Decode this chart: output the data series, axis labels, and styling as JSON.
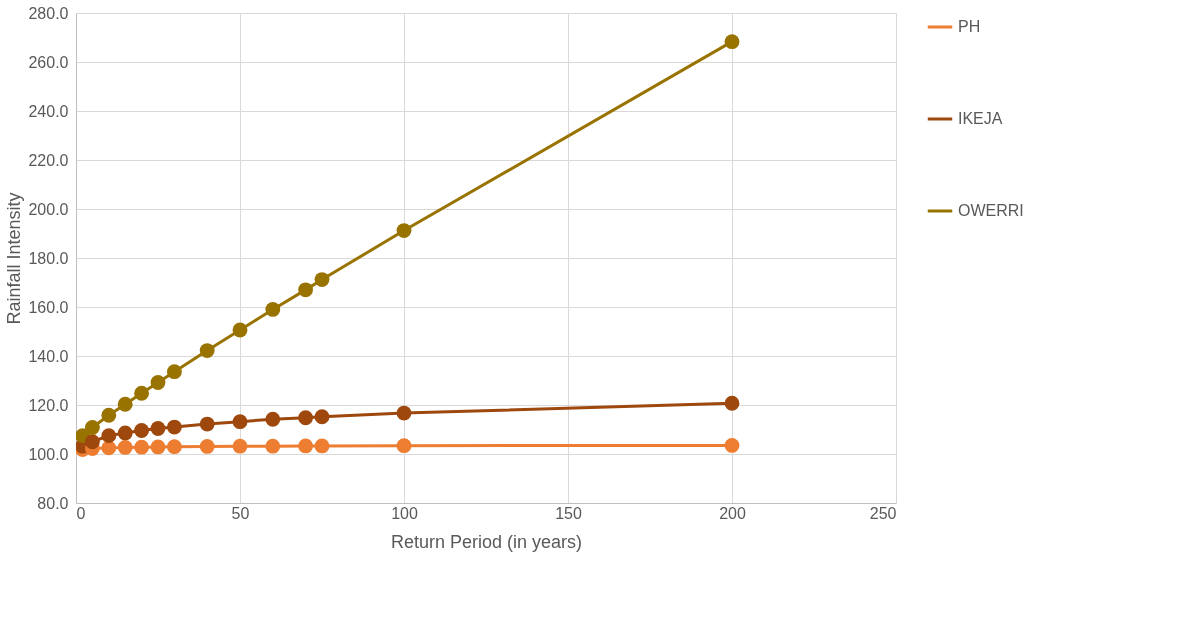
{
  "chart_data": {
    "type": "line",
    "xlabel": "Return Period (in years)",
    "ylabel": "Rainfall Intensity",
    "x": [
      2,
      5,
      10,
      15,
      20,
      25,
      30,
      40,
      50,
      60,
      70,
      75,
      100,
      200
    ],
    "series": [
      {
        "name": "PH",
        "color": "#ed7d31",
        "values": [
          101.8,
          102.2,
          102.5,
          102.7,
          102.8,
          102.9,
          103.0,
          103.1,
          103.2,
          103.2,
          103.3,
          103.3,
          103.4,
          103.5
        ]
      },
      {
        "name": "IKEJA",
        "color": "#9e480e",
        "values": [
          103.2,
          105.0,
          107.5,
          108.6,
          109.6,
          110.4,
          111.0,
          112.2,
          113.2,
          114.2,
          114.8,
          115.2,
          116.7,
          120.7
        ]
      },
      {
        "name": "OWERRI",
        "color": "#997300",
        "values": [
          107.5,
          110.8,
          115.8,
          120.3,
          124.8,
          129.2,
          133.6,
          142.2,
          150.6,
          159.0,
          167.0,
          171.2,
          191.2,
          268.3
        ]
      }
    ],
    "xlim": [
      0,
      250
    ],
    "xticks": [
      0,
      50,
      100,
      150,
      200,
      250
    ],
    "ylim": [
      80,
      280
    ],
    "yticks": [
      {
        "value": 80,
        "label": "80.0"
      },
      {
        "value": 100,
        "label": "100.0"
      },
      {
        "value": 120,
        "label": "120.0"
      },
      {
        "value": 140,
        "label": "140.0"
      },
      {
        "value": 160,
        "label": "160.0"
      },
      {
        "value": 180,
        "label": "180.0"
      },
      {
        "value": 200,
        "label": "200.0"
      },
      {
        "value": 220,
        "label": "220.0"
      },
      {
        "value": 240,
        "label": "240.0"
      },
      {
        "value": 260,
        "label": "260.0"
      },
      {
        "value": 280,
        "label": "280.0"
      }
    ],
    "grid": true,
    "legend": "right",
    "marker": "circle",
    "line_style": "solid"
  }
}
